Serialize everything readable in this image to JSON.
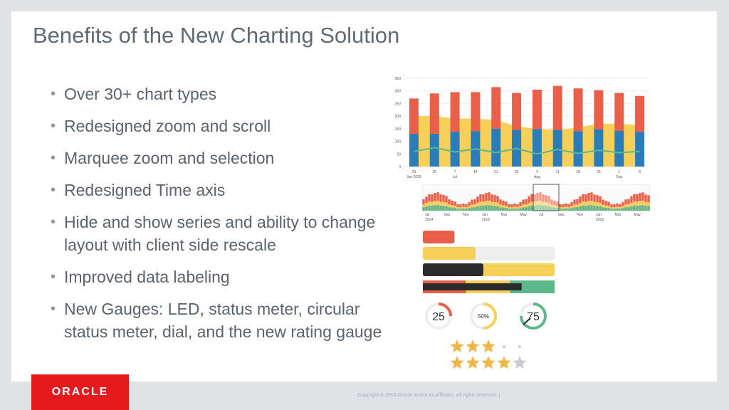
{
  "slide": {
    "title": "Benefits of the New Charting Solution",
    "bullets": [
      "Over 30+ chart types",
      "Redesigned zoom and scroll",
      "Marquee zoom and selection",
      "Redesigned Time axis",
      "Hide and show series and ability to change layout with client side rescale",
      "Improved data labeling",
      "New Gauges: LED, status meter, circular status meter, dial, and the new rating gauge"
    ],
    "bullet_marker": "•"
  },
  "footer": {
    "logo_text": "ORACLE",
    "logo_registered": "®",
    "copyright": "Copyright © 2014 Oracle and/or its affiliates. All rights reserved.  |"
  },
  "colors": {
    "red": "#e8604a",
    "yellow": "#f7d05a",
    "blue": "#2a7db8",
    "green": "#5bb98c",
    "dark": "#2b2b2b",
    "gauge_track": "#eeeeee",
    "star_on": "#f0b64a",
    "star_off": "#c8cdd2"
  },
  "chart_data": [
    {
      "type": "bar",
      "title": "",
      "categories": [
        "23",
        "30",
        "7",
        "14",
        "21",
        "28",
        "4",
        "11",
        "18",
        "25",
        "1",
        "8"
      ],
      "month_labels": [
        "Jun 2015",
        "",
        "Jul",
        "",
        "",
        "",
        "Aug",
        "",
        "",
        "",
        "Sep",
        ""
      ],
      "ylim": [
        0,
        350
      ],
      "yticks": [
        0,
        50,
        100,
        150,
        200,
        250,
        300,
        350
      ],
      "series": [
        {
          "kind": "bar",
          "values": [
            130,
            130,
            138,
            140,
            150,
            145,
            148,
            145,
            140,
            148,
            142,
            138
          ]
        },
        {
          "kind": "bar",
          "values": [
            140,
            160,
            157,
            155,
            165,
            147,
            157,
            175,
            170,
            155,
            150,
            142
          ]
        },
        {
          "kind": "area",
          "values": [
            200,
            200,
            190,
            190,
            185,
            160,
            150,
            145,
            155,
            170,
            170,
            165
          ]
        },
        {
          "kind": "line",
          "values": [
            60,
            75,
            58,
            70,
            55,
            72,
            50,
            68,
            52,
            65,
            55,
            60
          ]
        }
      ],
      "grid": true
    },
    {
      "type": "bar",
      "title": "",
      "overview": true,
      "x_labels": [
        "Jul",
        "Sep",
        "Nov",
        "Jan",
        "Mar",
        "May",
        "Jul",
        "Sep",
        "Nov",
        "Jan",
        "Mar",
        "May"
      ],
      "year_labels": [
        "2014",
        "",
        "",
        "2015",
        "",
        "",
        "",
        "",
        "",
        "2016",
        "",
        ""
      ],
      "selection": "Jul 2015"
    },
    {
      "type": "bar",
      "title": "",
      "status_meters": [
        {
          "value": 0.15,
          "colors": [
            "red"
          ],
          "track": false
        },
        {
          "value": 0.25,
          "colors": [
            "yellow"
          ],
          "track": true
        },
        {
          "value": 0.34,
          "colors": [
            "dark"
          ],
          "threshold_fill": "yellow"
        },
        {
          "value": 0.5,
          "colors": [
            "dark"
          ],
          "thresholds": [
            "red",
            "yellow",
            "green"
          ]
        }
      ],
      "circular_gauges": [
        {
          "label": "25",
          "value": 0.25,
          "color": "red"
        },
        {
          "label": "50%",
          "value": 0.5,
          "color": "yellow"
        },
        {
          "label": "75",
          "value": 0.75,
          "color": "green",
          "dial": true
        }
      ],
      "ratings": [
        {
          "value": 3,
          "max": 5,
          "style": "dots"
        },
        {
          "value": 4,
          "max": 5,
          "style": "stars"
        }
      ]
    }
  ]
}
